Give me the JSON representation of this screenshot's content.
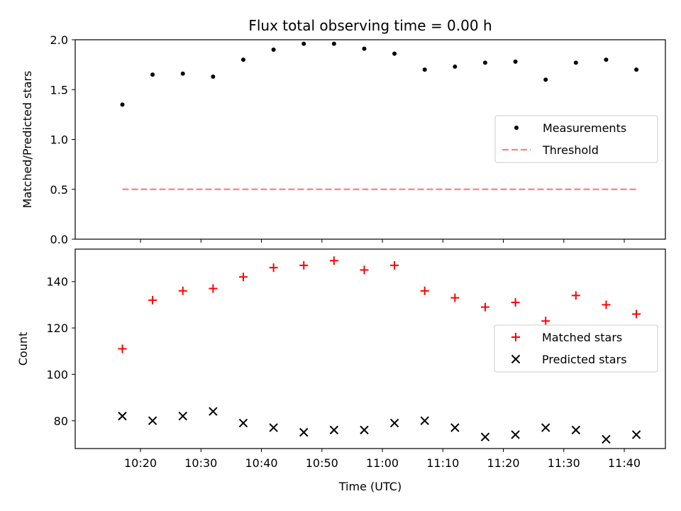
{
  "chart_data": {
    "type": "scatter",
    "title": "Flux total observing time = 0.00 h",
    "xlabel": "Time (UTC)",
    "x_tick_labels": [
      "10:20",
      "10:30",
      "10:40",
      "10:50",
      "11:00",
      "11:10",
      "11:20",
      "11:30",
      "11:40"
    ],
    "x_tick_minutes": [
      620,
      630,
      640,
      650,
      660,
      670,
      680,
      690,
      700
    ],
    "x_minutes": [
      617,
      622,
      627,
      632,
      637,
      642,
      647,
      652,
      657,
      662,
      667,
      672,
      677,
      682,
      687,
      692,
      697,
      702
    ],
    "xlim_minutes": [
      609.2,
      706.8
    ],
    "panels": [
      {
        "ylabel": "Matched/Predicted stars",
        "ylim": [
          0,
          2.0
        ],
        "y_ticks": [
          0.0,
          0.5,
          1.0,
          1.5,
          2.0
        ],
        "y_tick_labels": [
          "0.0",
          "0.5",
          "1.0",
          "1.5",
          "2.0"
        ],
        "legend_position": "center-right",
        "series": [
          {
            "name": "Measurements",
            "marker": "dot",
            "color": "#000000",
            "values": [
              1.35,
              1.65,
              1.66,
              1.63,
              1.8,
              1.9,
              1.96,
              1.96,
              1.91,
              1.86,
              1.7,
              1.73,
              1.77,
              1.78,
              1.6,
              1.77,
              1.8,
              1.7
            ]
          },
          {
            "name": "Threshold",
            "marker": "dashed-line",
            "color": "#ff8080",
            "values": [
              0.5,
              0.5,
              0.5,
              0.5,
              0.5,
              0.5,
              0.5,
              0.5,
              0.5,
              0.5,
              0.5,
              0.5,
              0.5,
              0.5,
              0.5,
              0.5,
              0.5,
              0.5
            ]
          }
        ]
      },
      {
        "ylabel": "Count",
        "ylim": [
          68,
          154
        ],
        "y_ticks": [
          80,
          100,
          120,
          140
        ],
        "y_tick_labels": [
          "80",
          "100",
          "120",
          "140"
        ],
        "legend_position": "center-right",
        "series": [
          {
            "name": "Matched stars",
            "marker": "plus",
            "color": "#ff0000",
            "values": [
              111,
              132,
              136,
              137,
              142,
              146,
              147,
              149,
              145,
              147,
              136,
              133,
              129,
              131,
              123,
              134,
              130,
              126
            ]
          },
          {
            "name": "Predicted stars",
            "marker": "x",
            "color": "#000000",
            "values": [
              82,
              80,
              82,
              84,
              79,
              77,
              75,
              76,
              76,
              79,
              80,
              77,
              73,
              74,
              77,
              76,
              72,
              74
            ]
          }
        ]
      }
    ]
  }
}
